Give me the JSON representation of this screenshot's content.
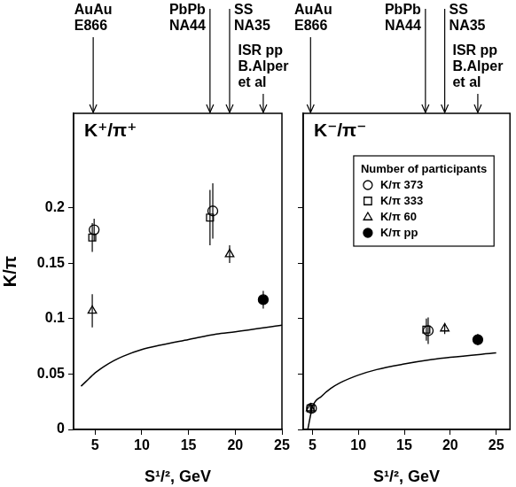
{
  "chart_data": [
    {
      "type": "scatter",
      "title": "K⁺/π⁺",
      "y_label": "K/π",
      "x_label": "S¹/², GeV",
      "xlim": [
        2.7,
        25
      ],
      "xticks": [
        5,
        10,
        15,
        20,
        25
      ],
      "ylim": [
        0,
        0.285
      ],
      "yticks": [
        0,
        0.05,
        0.1,
        0.15,
        0.2
      ],
      "annotations": [
        {
          "x": 4.8,
          "text": [
            "AuAu",
            "E866"
          ]
        },
        {
          "x": 17.3,
          "text": [
            "PbPb",
            "NA44"
          ]
        },
        {
          "x": 19.4,
          "text": [
            "SS",
            "NA35"
          ]
        },
        {
          "x": 23,
          "text": [
            "ISR pp",
            "B.Alper",
            "et al"
          ]
        }
      ],
      "series": [
        {
          "name": "K/π 373",
          "marker": "open_circle",
          "color": "#000000",
          "x": [
            4.9,
            17.6
          ],
          "values": [
            0.18,
            0.197
          ],
          "errors": [
            0.01,
            0.025
          ]
        },
        {
          "name": "K/π 333",
          "marker": "open_square",
          "color": "#000000",
          "x": [
            4.7,
            17.3
          ],
          "values": [
            0.173,
            0.191
          ],
          "errors": [
            0.013,
            0.025
          ]
        },
        {
          "name": "K/π 60",
          "marker": "open_triangle",
          "color": "#000000",
          "x": [
            4.7,
            19.4
          ],
          "values": [
            0.107,
            0.158
          ],
          "errors": [
            0.015,
            0.008
          ]
        },
        {
          "name": "K/π pp",
          "marker": "filled_circle",
          "color": "#000000",
          "x": [
            23
          ],
          "values": [
            0.117
          ],
          "errors": [
            0.008
          ]
        },
        {
          "type": "line",
          "line_style": "solid",
          "color": "#000000",
          "x": [
            3.5,
            4,
            5,
            6,
            7,
            8,
            10,
            12,
            15,
            18,
            20,
            25
          ],
          "values": [
            0.039,
            0.043,
            0.051,
            0.057,
            0.062,
            0.066,
            0.072,
            0.076,
            0.081,
            0.086,
            0.088,
            0.094
          ]
        }
      ]
    },
    {
      "type": "scatter",
      "title": "K⁻/π⁻",
      "x_label": "S¹/², GeV",
      "xlim": [
        4,
        26.5
      ],
      "xticks": [
        5,
        10,
        15,
        20,
        25
      ],
      "ylim": [
        0,
        0.285
      ],
      "yticks": [
        0,
        0.05,
        0.1,
        0.15,
        0.2
      ],
      "tick_labels": "x",
      "legend": "upper right",
      "legend_title": "Number of participants",
      "annotations": [
        {
          "x": 4.8,
          "text": [
            "AuAu",
            "E866"
          ]
        },
        {
          "x": 17.3,
          "text": [
            "PbPb",
            "NA44"
          ]
        },
        {
          "x": 19.4,
          "text": [
            "SS",
            "NA35"
          ]
        },
        {
          "x": 23,
          "text": [
            "ISR pp",
            "B.Alper",
            "et al"
          ]
        }
      ],
      "series": [
        {
          "name": "K/π 373",
          "marker": "open_circle",
          "color": "#000000",
          "x": [
            4.9,
            17.6
          ],
          "values": [
            0.019,
            0.089
          ],
          "errors": [
            0.003,
            0.012
          ]
        },
        {
          "name": "K/π 333",
          "marker": "open_square",
          "color": "#000000",
          "x": [
            4.8,
            17.4
          ],
          "values": [
            0.019,
            0.09
          ],
          "errors": [
            0.004,
            0.01
          ]
        },
        {
          "name": "K/π 60",
          "marker": "open_triangle",
          "color": "#000000",
          "x": [
            4.8,
            19.4
          ],
          "values": [
            0.019,
            0.091
          ],
          "errors": [
            0.003,
            0.005
          ]
        },
        {
          "name": "K/π pp",
          "marker": "filled_circle",
          "color": "#000000",
          "x": [
            23
          ],
          "values": [
            0.081
          ],
          "errors": [
            0.005
          ]
        },
        {
          "type": "line",
          "line_style": "solid",
          "color": "#000000",
          "x": [
            4.5,
            5,
            6,
            7,
            8,
            10,
            12,
            15,
            18,
            20,
            25
          ],
          "values": [
            0,
            0.02,
            0.03,
            0.037,
            0.042,
            0.049,
            0.054,
            0.059,
            0.063,
            0.065,
            0.069
          ]
        }
      ]
    }
  ]
}
